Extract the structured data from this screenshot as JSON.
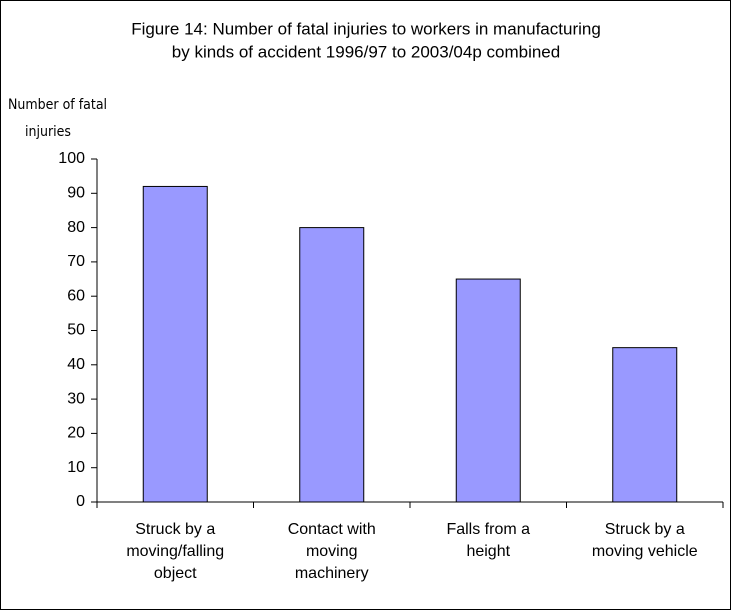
{
  "chart_data": {
    "type": "bar",
    "title": [
      "Figure 14:  Number of fatal injuries to workers in manufacturing",
      "by kinds of accident 1996/97 to 2003/04p combined"
    ],
    "y_label": [
      "Number of fatal",
      "injuries"
    ],
    "categories": [
      "Struck by a\nmoving/falling\nobject",
      "Contact with\nmoving\nmachinery",
      "Falls from a\nheight",
      "Struck by a\nmoving vehicle"
    ],
    "values": [
      92,
      80,
      65,
      45
    ],
    "color": "#9999ff",
    "ylim": [
      0,
      100
    ],
    "yticks": [
      0,
      10,
      20,
      30,
      40,
      50,
      60,
      70,
      80,
      90,
      100
    ],
    "grid": false
  }
}
